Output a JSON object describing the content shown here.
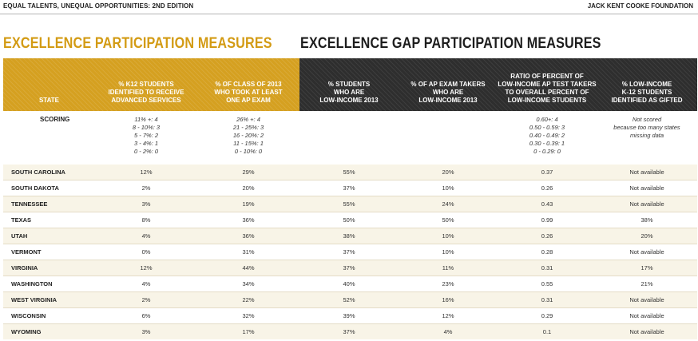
{
  "header": {
    "left": "EQUAL TALENTS, UNEQUAL OPPORTUNITIES: 2ND EDITION",
    "right": "JACK KENT COOKE FOUNDATION"
  },
  "titles": {
    "participation": "EXCELLENCE PARTICIPATION MEASURES",
    "gap": "EXCELLENCE GAP PARTICIPATION MEASURES"
  },
  "columns": [
    {
      "label": "STATE"
    },
    {
      "label": "% K12 STUDENTS\nIDENTIFIED TO RECEIVE\nADVANCED SERVICES"
    },
    {
      "label": "% OF CLASS OF 2013\nWHO TOOK AT LEAST\nONE AP EXAM"
    },
    {
      "label": "% STUDENTS\nWHO ARE\nLOW-INCOME 2013"
    },
    {
      "label": "% OF AP EXAM TAKERS\nWHO ARE\nLOW-INCOME 2013"
    },
    {
      "label": "RATIO OF PERCENT OF\nLOW-INCOME AP TEST TAKERS\nTO OVERALL PERCENT OF\nLOW-INCOME STUDENTS"
    },
    {
      "label": "% LOW-INCOME\nK-12 STUDENTS\nIDENTIFIED AS GIFTED"
    }
  ],
  "scoring": {
    "label": "SCORING",
    "col1": "11% +: 4\n8 - 10%: 3\n5 - 7%: 2\n3 - 4%: 1\n0 - 2%: 0",
    "col2": "26% +: 4\n21 - 25%: 3\n16 - 20%: 2\n11 - 15%: 1\n0 - 10%: 0",
    "col3": "",
    "col4": "",
    "col5": "0.60+: 4\n0.50 - 0.59: 3\n0.40 - 0.49: 2\n0.30 - 0.39: 1\n0 - 0.29: 0",
    "col6": "Not scored\nbecause too many states\nmissing data"
  },
  "rows": [
    {
      "state": "SOUTH CAROLINA",
      "c1": "12%",
      "c2": "29%",
      "c3": "55%",
      "c4": "20%",
      "c5": "0.37",
      "c6": "Not available"
    },
    {
      "state": "SOUTH DAKOTA",
      "c1": "2%",
      "c2": "20%",
      "c3": "37%",
      "c4": "10%",
      "c5": "0.26",
      "c6": "Not available"
    },
    {
      "state": "TENNESSEE",
      "c1": "3%",
      "c2": "19%",
      "c3": "55%",
      "c4": "24%",
      "c5": "0.43",
      "c6": "Not available"
    },
    {
      "state": "TEXAS",
      "c1": "8%",
      "c2": "36%",
      "c3": "50%",
      "c4": "50%",
      "c5": "0.99",
      "c6": "38%"
    },
    {
      "state": "UTAH",
      "c1": "4%",
      "c2": "36%",
      "c3": "38%",
      "c4": "10%",
      "c5": "0.26",
      "c6": "20%"
    },
    {
      "state": "VERMONT",
      "c1": "0%",
      "c2": "31%",
      "c3": "37%",
      "c4": "10%",
      "c5": "0.28",
      "c6": "Not available"
    },
    {
      "state": "VIRGINIA",
      "c1": "12%",
      "c2": "44%",
      "c3": "37%",
      "c4": "11%",
      "c5": "0.31",
      "c6": "17%"
    },
    {
      "state": "WASHINGTON",
      "c1": "4%",
      "c2": "34%",
      "c3": "40%",
      "c4": "23%",
      "c5": "0.55",
      "c6": "21%"
    },
    {
      "state": "WEST VIRGINIA",
      "c1": "2%",
      "c2": "22%",
      "c3": "52%",
      "c4": "16%",
      "c5": "0.31",
      "c6": "Not available"
    },
    {
      "state": "WISCONSIN",
      "c1": "6%",
      "c2": "32%",
      "c3": "39%",
      "c4": "12%",
      "c5": "0.29",
      "c6": "Not available"
    },
    {
      "state": "WYOMING",
      "c1": "3%",
      "c2": "17%",
      "c3": "37%",
      "c4": "4%",
      "c5": "0.1",
      "c6": "Not available"
    }
  ]
}
